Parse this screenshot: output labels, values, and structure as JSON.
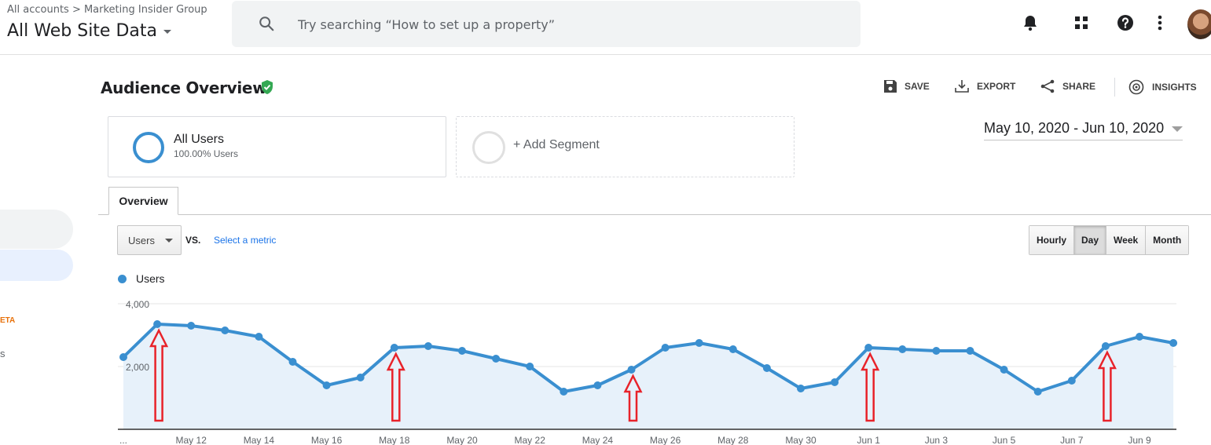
{
  "header": {
    "breadcrumb": "All accounts > Marketing Insider Group",
    "property": "All Web Site Data",
    "search_placeholder": "Try searching “How to set up a property”",
    "icons": [
      "notifications-icon",
      "apps-grid-icon",
      "help-icon",
      "more-vert-icon",
      "avatar"
    ]
  },
  "sidebar": {
    "beta_label": "ETA",
    "partial_item": "s"
  },
  "report": {
    "title": "Audience Overview",
    "actions": {
      "save": "SAVE",
      "export": "EXPORT",
      "share": "SHARE",
      "insights": "INSIGHTS"
    }
  },
  "segments": {
    "primary_name": "All Users",
    "primary_pct": "100.00% Users",
    "add_label": "+ Add Segment"
  },
  "date_range": "May 10, 2020 - Jun 10, 2020",
  "tabs": {
    "overview": "Overview"
  },
  "controls": {
    "metric": "Users",
    "vs": "VS.",
    "select_metric": "Select a metric",
    "grain": [
      "Hourly",
      "Day",
      "Week",
      "Month"
    ],
    "active_grain": "Day"
  },
  "colors": {
    "series": "#3a8fd0",
    "area": "#e7f1fa",
    "arrow": "#e8232a",
    "shield": "#34a853"
  },
  "chart_data": {
    "type": "area",
    "series": [
      {
        "name": "Users",
        "values": [
          2300,
          3350,
          3300,
          3150,
          2950,
          2150,
          1400,
          1650,
          2600,
          2650,
          2500,
          2250,
          2000,
          1200,
          1400,
          1900,
          2600,
          2750,
          2550,
          1950,
          1300,
          1500,
          2600,
          2550,
          2500,
          2500,
          1900,
          1200,
          1550,
          2650,
          2950,
          2750
        ]
      }
    ],
    "ylim": [
      0,
      4000
    ],
    "y_ticks": [
      4000,
      2000
    ],
    "y_tick_labels": [
      "4,000",
      "2,000"
    ],
    "x_tick_labels": [
      "...",
      "May 12",
      "May 14",
      "May 16",
      "May 18",
      "May 20",
      "May 22",
      "May 24",
      "May 26",
      "May 28",
      "May 30",
      "Jun 1",
      "Jun 3",
      "Jun 5",
      "Jun 7",
      "Jun 9"
    ],
    "annotations": {
      "type": "arrow",
      "point_indices": [
        1,
        8,
        15,
        22,
        29
      ]
    },
    "grid": true
  }
}
